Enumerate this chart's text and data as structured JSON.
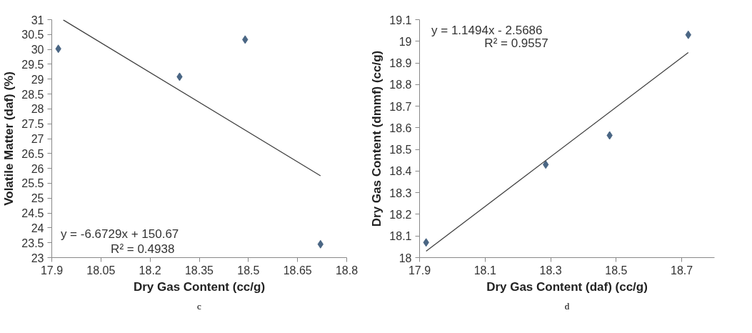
{
  "chart_data": [
    {
      "type": "scatter",
      "xlabel": "Dry Gas Content (cc/g)",
      "ylabel": "Volatile Matter (daf) (%)",
      "x": [
        17.92,
        18.29,
        18.49,
        18.72
      ],
      "series": [
        {
          "color": "#4a6684",
          "marker": "diamond",
          "values": [
            30.02,
            29.08,
            30.33,
            23.45
          ]
        },
        {
          "type": "line",
          "color": "#404040",
          "x": [
            17.935,
            18.72
          ],
          "values": [
            30.99,
            25.75
          ]
        }
      ],
      "xlim": [
        17.9,
        18.8
      ],
      "xticks": [
        17.9,
        18.05,
        18.2,
        18.35,
        18.5,
        18.65,
        18.8
      ],
      "ylim": [
        23,
        31
      ],
      "yticks": [
        23,
        23.5,
        24,
        24.5,
        25,
        25.5,
        26,
        26.5,
        27,
        27.5,
        28,
        28.5,
        29,
        29.5,
        30,
        30.5,
        31
      ],
      "grid": false,
      "annotations": [
        "y = -6.6729x + 150.67",
        "R² = 0.4938",
        "c"
      ]
    },
    {
      "type": "scatter",
      "xlabel": "Dry Gas Content (daf) (cc/g)",
      "ylabel": "Dry Gas Content (dmmf) (cc/g)",
      "x": [
        17.92,
        18.285,
        18.48,
        18.72
      ],
      "series": [
        {
          "color": "#4a6684",
          "marker": "diamond",
          "values": [
            18.07,
            18.43,
            18.565,
            19.03
          ]
        },
        {
          "type": "line",
          "color": "#404040",
          "x": [
            17.92,
            18.72
          ],
          "values": [
            18.03,
            18.948
          ]
        }
      ],
      "xlim": [
        17.9,
        18.8
      ],
      "xticks": [
        17.9,
        18.1,
        18.3,
        18.5,
        18.7
      ],
      "ylim": [
        18,
        19.1
      ],
      "yticks": [
        18,
        18.1,
        18.2,
        18.3,
        18.4,
        18.5,
        18.6,
        18.7,
        18.8,
        18.9,
        19,
        19.1
      ],
      "grid": false,
      "annotations": [
        "y = 1.1494x - 2.5686",
        "R² = 0.9557",
        "d"
      ]
    }
  ]
}
